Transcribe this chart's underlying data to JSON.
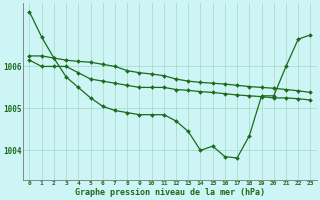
{
  "background_color": "#cef5f5",
  "grid_color": "#aaddcc",
  "line_color": "#1a6b1a",
  "marker_color": "#1a6b1a",
  "xlabel": "Graphe pression niveau de la mer (hPa)",
  "ylim": [
    1003.3,
    1007.5
  ],
  "xlim": [
    -0.5,
    23.5
  ],
  "yticks": [
    1004,
    1005,
    1006
  ],
  "xtick_labels": [
    "0",
    "1",
    "2",
    "3",
    "4",
    "5",
    "6",
    "7",
    "8",
    "9",
    "10",
    "11",
    "12",
    "13",
    "14",
    "15",
    "16",
    "17",
    "18",
    "19",
    "20",
    "21",
    "22",
    "23"
  ],
  "series": {
    "main": [
      1007.3,
      1006.7,
      1006.2,
      1005.75,
      1005.5,
      1005.25,
      1005.05,
      1004.95,
      1004.9,
      1004.85,
      1004.85,
      1004.85,
      1004.7,
      1004.45,
      1004.0,
      1004.1,
      1003.85,
      1003.82,
      1004.35,
      1005.3,
      1005.3,
      1006.0,
      1006.65,
      1006.75
    ],
    "line2": [
      1006.15,
      1006.0,
      1006.0,
      1006.0,
      1005.85,
      1005.7,
      1005.65,
      1005.6,
      1005.55,
      1005.5,
      1005.5,
      1005.5,
      1005.45,
      1005.43,
      1005.4,
      1005.38,
      1005.35,
      1005.32,
      1005.3,
      1005.28,
      1005.25,
      1005.25,
      1005.23,
      1005.2
    ],
    "line3": [
      1006.25,
      1006.25,
      1006.2,
      1006.15,
      1006.12,
      1006.1,
      1006.05,
      1006.0,
      1005.9,
      1005.85,
      1005.82,
      1005.78,
      1005.7,
      1005.65,
      1005.62,
      1005.6,
      1005.58,
      1005.55,
      1005.52,
      1005.5,
      1005.48,
      1005.45,
      1005.42,
      1005.38
    ]
  }
}
